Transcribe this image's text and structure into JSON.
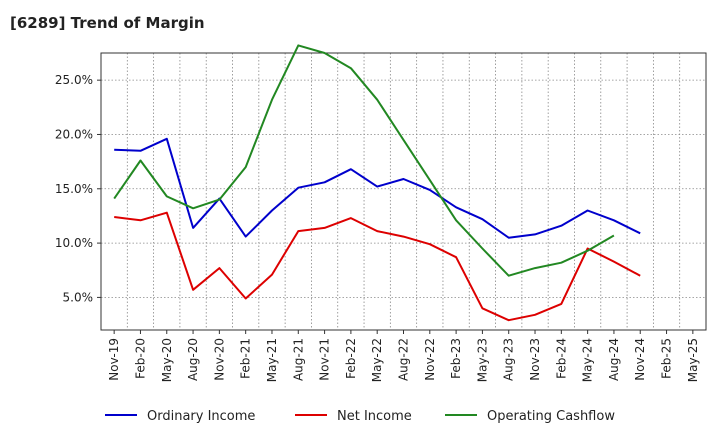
{
  "chart_data": {
    "type": "line",
    "title": "[6289]  Trend of Margin",
    "categories": [
      "Nov-19",
      "Feb-20",
      "May-20",
      "Aug-20",
      "Nov-20",
      "Feb-21",
      "May-21",
      "Aug-21",
      "Nov-21",
      "Feb-22",
      "May-22",
      "Aug-22",
      "Nov-22",
      "Feb-23",
      "May-23",
      "Aug-23",
      "Nov-23",
      "Feb-24",
      "May-24",
      "Aug-24",
      "Nov-24",
      "Feb-25",
      "May-25"
    ],
    "ylim": [
      2.0,
      27.5
    ],
    "yticks": [
      5.0,
      10.0,
      15.0,
      20.0,
      25.0
    ],
    "ytick_labels": [
      "5.0%",
      "10.0%",
      "15.0%",
      "20.0%",
      "25.0%"
    ],
    "grid": true,
    "legend_position": "bottom",
    "series": [
      {
        "name": "Ordinary Income",
        "color": "#0000cc",
        "values": [
          18.6,
          18.5,
          19.6,
          11.4,
          14.1,
          10.6,
          13.0,
          15.1,
          15.6,
          16.8,
          15.2,
          15.9,
          14.9,
          13.3,
          12.2,
          10.5,
          10.8,
          11.6,
          13.0,
          12.1,
          10.9,
          null,
          null
        ]
      },
      {
        "name": "Net Income",
        "color": "#dd0000",
        "values": [
          12.4,
          12.1,
          12.8,
          5.7,
          7.7,
          4.9,
          7.1,
          11.1,
          11.4,
          12.3,
          11.1,
          10.6,
          9.9,
          8.7,
          4.0,
          2.9,
          3.4,
          4.4,
          9.5,
          8.3,
          7.0,
          null,
          null
        ]
      },
      {
        "name": "Operating Cashflow",
        "color": "#228822",
        "values": [
          14.1,
          17.6,
          14.3,
          13.2,
          14.0,
          17.0,
          23.2,
          28.2,
          27.5,
          26.1,
          23.2,
          19.5,
          15.8,
          12.1,
          9.5,
          7.0,
          7.7,
          8.2,
          9.3,
          10.7,
          null,
          null,
          null
        ]
      }
    ]
  }
}
